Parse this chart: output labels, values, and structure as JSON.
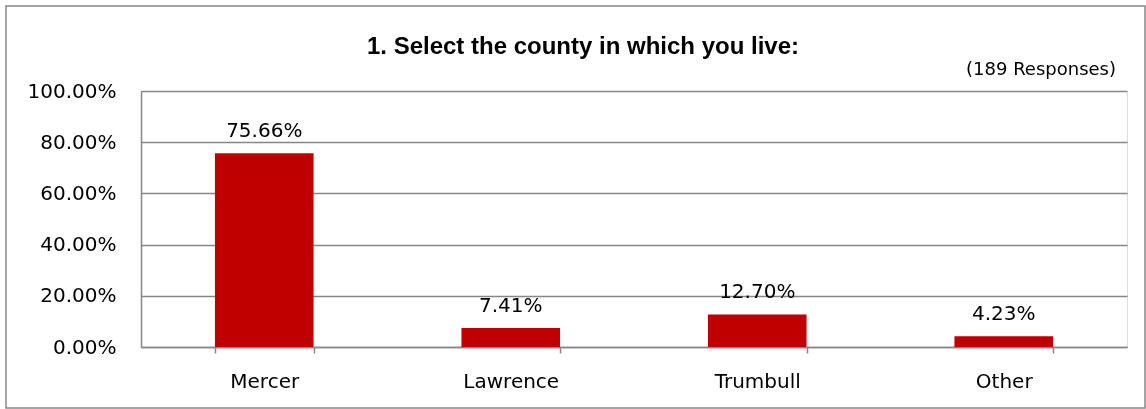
{
  "chart_data": {
    "type": "bar",
    "title": "1. Select the county in which you live:",
    "annotations": [
      "(189 Responses)"
    ],
    "categories": [
      "Mercer",
      "Lawrence",
      "Trumbull",
      "Other"
    ],
    "values": [
      75.66,
      7.41,
      12.7,
      4.23
    ],
    "color": "#c00000",
    "value_labels": [
      "75.66%",
      "7.41%",
      "12.70%",
      "4.23%"
    ],
    "ylim": [
      0,
      100
    ],
    "yticks": [
      {
        "value": 0,
        "label": "0.00%"
      },
      {
        "value": 20,
        "label": "20.00%"
      },
      {
        "value": 40,
        "label": "40.00%"
      },
      {
        "value": 60,
        "label": "60.00%"
      },
      {
        "value": 80,
        "label": "80.00%"
      },
      {
        "value": 100,
        "label": "100.00%"
      }
    ],
    "grid": "y"
  }
}
